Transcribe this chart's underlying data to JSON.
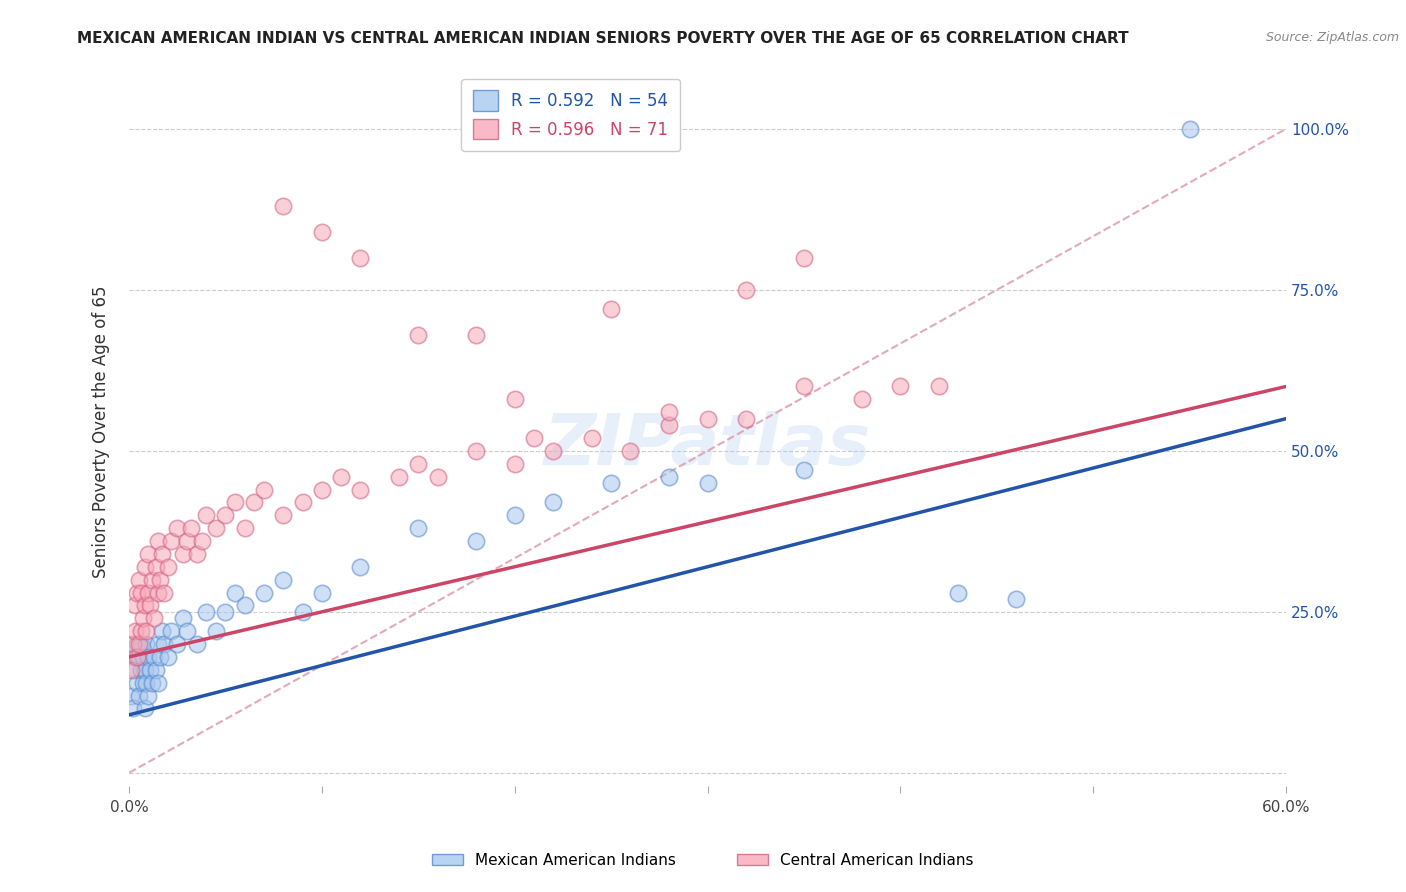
{
  "title": "MEXICAN AMERICAN INDIAN VS CENTRAL AMERICAN INDIAN SENIORS POVERTY OVER THE AGE OF 65 CORRELATION CHART",
  "source": "Source: ZipAtlas.com",
  "ylabel": "Seniors Poverty Over the Age of 65",
  "xlim": [
    0.0,
    0.6
  ],
  "ylim": [
    -0.02,
    1.08
  ],
  "x_ticks": [
    0.0,
    0.1,
    0.2,
    0.3,
    0.4,
    0.5,
    0.6
  ],
  "x_tick_labels": [
    "0.0%",
    "",
    "",
    "",
    "",
    "",
    "60.0%"
  ],
  "y_ticks": [
    0.0,
    0.25,
    0.5,
    0.75,
    1.0
  ],
  "y_tick_labels_right": [
    "",
    "25.0%",
    "50.0%",
    "75.0%",
    "100.0%"
  ],
  "blue_R": "0.592",
  "blue_N": "54",
  "pink_R": "0.596",
  "pink_N": "71",
  "blue_fill_color": "#a8c8f0",
  "blue_edge_color": "#5588cc",
  "pink_fill_color": "#f8a8b8",
  "pink_edge_color": "#d06080",
  "blue_line_color": "#2255aa",
  "pink_line_color": "#cc4466",
  "dashed_line_color": "#e0a0b0",
  "legend_label_blue": "Mexican American Indians",
  "legend_label_pink": "Central American Indians",
  "watermark": "ZIPatlas",
  "blue_scatter_x": [
    0.001,
    0.002,
    0.003,
    0.003,
    0.004,
    0.004,
    0.005,
    0.005,
    0.006,
    0.006,
    0.007,
    0.007,
    0.008,
    0.008,
    0.009,
    0.009,
    0.01,
    0.01,
    0.011,
    0.012,
    0.013,
    0.014,
    0.015,
    0.015,
    0.016,
    0.017,
    0.018,
    0.02,
    0.022,
    0.025,
    0.028,
    0.03,
    0.035,
    0.04,
    0.045,
    0.05,
    0.055,
    0.06,
    0.07,
    0.08,
    0.09,
    0.1,
    0.12,
    0.15,
    0.18,
    0.2,
    0.22,
    0.25,
    0.28,
    0.3,
    0.35,
    0.43,
    0.46,
    0.55
  ],
  "blue_scatter_y": [
    0.12,
    0.1,
    0.16,
    0.18,
    0.14,
    0.2,
    0.12,
    0.18,
    0.16,
    0.2,
    0.14,
    0.18,
    0.1,
    0.16,
    0.14,
    0.2,
    0.12,
    0.18,
    0.16,
    0.14,
    0.18,
    0.16,
    0.2,
    0.14,
    0.18,
    0.22,
    0.2,
    0.18,
    0.22,
    0.2,
    0.24,
    0.22,
    0.2,
    0.25,
    0.22,
    0.25,
    0.28,
    0.26,
    0.28,
    0.3,
    0.25,
    0.28,
    0.32,
    0.38,
    0.36,
    0.4,
    0.42,
    0.45,
    0.46,
    0.45,
    0.47,
    0.28,
    0.27,
    1.0
  ],
  "pink_scatter_x": [
    0.001,
    0.002,
    0.003,
    0.003,
    0.004,
    0.004,
    0.005,
    0.005,
    0.006,
    0.006,
    0.007,
    0.008,
    0.008,
    0.009,
    0.01,
    0.01,
    0.011,
    0.012,
    0.013,
    0.014,
    0.015,
    0.015,
    0.016,
    0.017,
    0.018,
    0.02,
    0.022,
    0.025,
    0.028,
    0.03,
    0.032,
    0.035,
    0.038,
    0.04,
    0.045,
    0.05,
    0.055,
    0.06,
    0.065,
    0.07,
    0.08,
    0.09,
    0.1,
    0.11,
    0.12,
    0.14,
    0.15,
    0.16,
    0.18,
    0.2,
    0.21,
    0.22,
    0.24,
    0.26,
    0.28,
    0.3,
    0.32,
    0.35,
    0.38,
    0.4,
    0.42,
    0.18,
    0.25,
    0.32,
    0.35,
    0.28,
    0.2,
    0.15,
    0.12,
    0.1,
    0.08
  ],
  "pink_scatter_y": [
    0.16,
    0.2,
    0.22,
    0.26,
    0.18,
    0.28,
    0.2,
    0.3,
    0.22,
    0.28,
    0.24,
    0.26,
    0.32,
    0.22,
    0.28,
    0.34,
    0.26,
    0.3,
    0.24,
    0.32,
    0.28,
    0.36,
    0.3,
    0.34,
    0.28,
    0.32,
    0.36,
    0.38,
    0.34,
    0.36,
    0.38,
    0.34,
    0.36,
    0.4,
    0.38,
    0.4,
    0.42,
    0.38,
    0.42,
    0.44,
    0.4,
    0.42,
    0.44,
    0.46,
    0.44,
    0.46,
    0.48,
    0.46,
    0.5,
    0.48,
    0.52,
    0.5,
    0.52,
    0.5,
    0.54,
    0.55,
    0.55,
    0.6,
    0.58,
    0.6,
    0.6,
    0.68,
    0.72,
    0.75,
    0.8,
    0.56,
    0.58,
    0.68,
    0.8,
    0.84,
    0.88
  ],
  "blue_line_x0": 0.0,
  "blue_line_y0": 0.09,
  "blue_line_x1": 0.6,
  "blue_line_y1": 0.55,
  "pink_line_x0": 0.0,
  "pink_line_y0": 0.18,
  "pink_line_x1": 0.6,
  "pink_line_y1": 0.6,
  "dash_line_x0": 0.0,
  "dash_line_y0": 0.0,
  "dash_line_x1": 0.6,
  "dash_line_y1": 1.0
}
